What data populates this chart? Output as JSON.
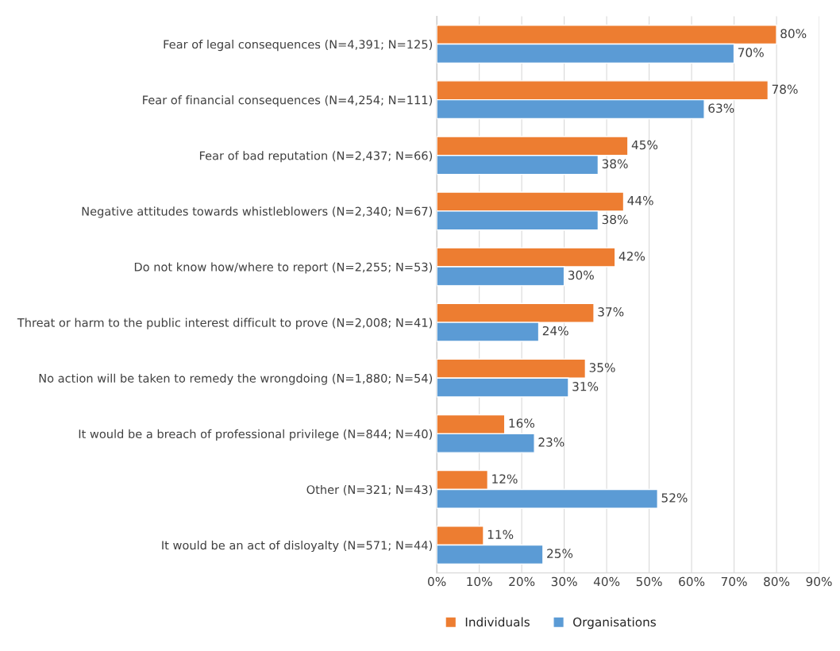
{
  "chart_data": {
    "type": "bar",
    "orientation": "horizontal",
    "categories": [
      "Fear of legal consequences (N=4,391; N=125)",
      "Fear of financial consequences (N=4,254; N=111)",
      "Fear of bad reputation (N=2,437; N=66)",
      "Negative attitudes towards whistleblowers (N=2,340; N=67)",
      "Do not know how/where to report (N=2,255; N=53)",
      "Threat or harm to the public interest difficult to prove (N=2,008; N=41)",
      "No action will be taken to remedy the wrongdoing (N=1,880; N=54)",
      "It would be a breach of professional privilege (N=844; N=40)",
      "Other (N=321; N=43)",
      "It would be an act of disloyalty (N=571; N=44)"
    ],
    "series": [
      {
        "name": "Individuals",
        "color": "#ed7d31",
        "values": [
          80,
          78,
          45,
          44,
          42,
          37,
          35,
          16,
          12,
          11
        ],
        "value_labels": [
          "80%",
          "78%",
          "45%",
          "44%",
          "42%",
          "37%",
          "35%",
          "16%",
          "12%",
          "11%"
        ]
      },
      {
        "name": "Organisations",
        "color": "#5b9bd5",
        "values": [
          70,
          63,
          38,
          38,
          30,
          24,
          31,
          23,
          52,
          25
        ],
        "value_labels": [
          "70%",
          "63%",
          "38%",
          "38%",
          "30%",
          "24%",
          "31%",
          "23%",
          "52%",
          "25%"
        ]
      }
    ],
    "xlim": [
      0,
      90
    ],
    "xticks": [
      {
        "value": 0,
        "label": "0%"
      },
      {
        "value": 10,
        "label": "10%"
      },
      {
        "value": 20,
        "label": "20%"
      },
      {
        "value": 30,
        "label": "30%"
      },
      {
        "value": 40,
        "label": "40%"
      },
      {
        "value": 50,
        "label": "50%"
      },
      {
        "value": 60,
        "label": "60%"
      },
      {
        "value": 70,
        "label": "70%"
      },
      {
        "value": 80,
        "label": "80%"
      },
      {
        "value": 90,
        "label": "90%"
      }
    ],
    "grid": "x",
    "legend": "bottom"
  }
}
